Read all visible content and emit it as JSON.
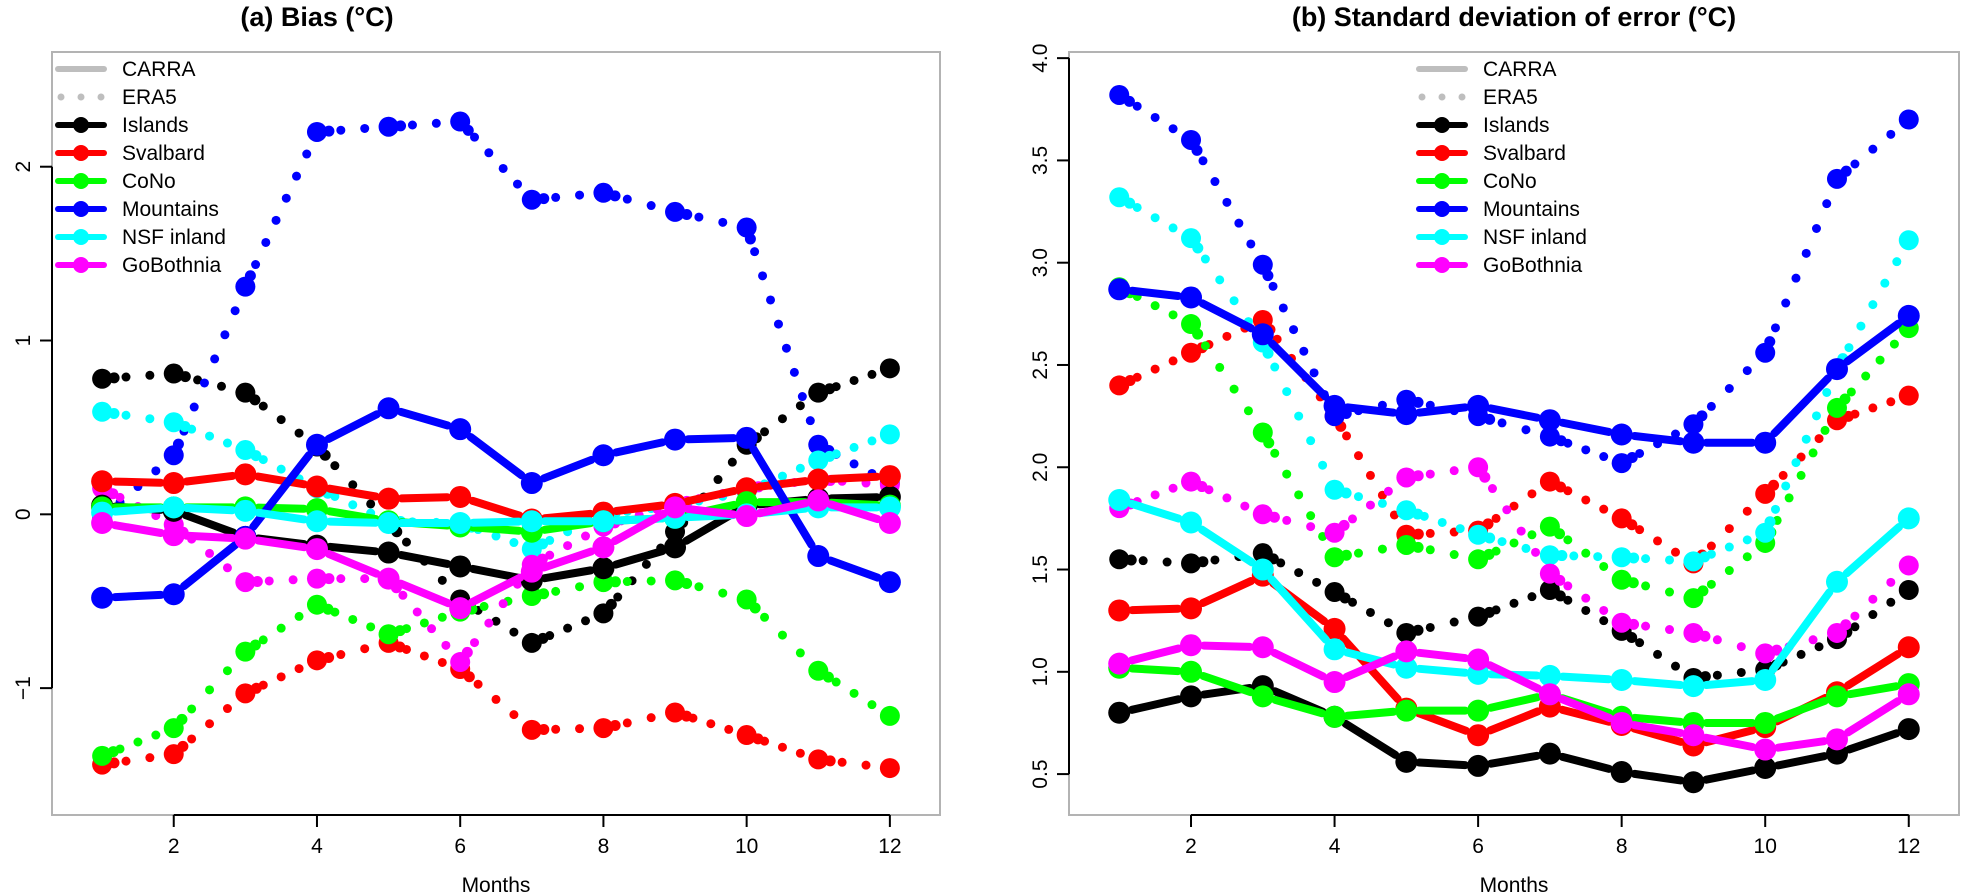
{
  "colors": {
    "Islands": "#000000",
    "Svalbard": "#ff0000",
    "CoNo": "#00ff00",
    "Mountains": "#0000ff",
    "NSF inland": "#00ffff",
    "GoBothnia": "#ff00ff",
    "legend_gray": "#bebebe"
  },
  "legend": {
    "styles": [
      {
        "label": "CARRA",
        "style": "solid"
      },
      {
        "label": "ERA5",
        "style": "dotted"
      }
    ],
    "regions": [
      "Islands",
      "Svalbard",
      "CoNo",
      "Mountains",
      "NSF inland",
      "GoBothnia"
    ]
  },
  "chart_data": [
    {
      "type": "line",
      "title": "(a) Bias (°C)",
      "xlabel": "Months",
      "ylabel": "",
      "x": [
        1,
        2,
        3,
        4,
        5,
        6,
        7,
        8,
        9,
        10,
        11,
        12
      ],
      "xlim": [
        0.3,
        12.7
      ],
      "ylim": [
        -1.73,
        2.66
      ],
      "xticks": [
        2,
        4,
        6,
        8,
        10,
        12
      ],
      "yticks": [
        -1,
        0,
        1,
        2
      ],
      "ytick_labels": [
        "−1",
        "0",
        "1",
        "2"
      ],
      "grid": false,
      "legend_position": "top-left",
      "series": [
        {
          "name": "Islands",
          "model": "CARRA",
          "values": [
            0.05,
            0.02,
            -0.13,
            -0.18,
            -0.22,
            -0.3,
            -0.38,
            -0.31,
            -0.19,
            0.05,
            0.09,
            0.1
          ]
        },
        {
          "name": "Svalbard",
          "model": "CARRA",
          "values": [
            0.19,
            0.18,
            0.23,
            0.16,
            0.09,
            0.1,
            -0.03,
            0.01,
            0.06,
            0.15,
            0.2,
            0.22
          ]
        },
        {
          "name": "CoNo",
          "model": "CARRA",
          "values": [
            0.04,
            0.04,
            0.04,
            0.03,
            -0.04,
            -0.07,
            -0.1,
            -0.04,
            -0.02,
            0.07,
            0.07,
            0.05
          ]
        },
        {
          "name": "Mountains",
          "model": "CARRA",
          "values": [
            -0.48,
            -0.46,
            -0.13,
            0.4,
            0.61,
            0.49,
            0.18,
            0.34,
            0.43,
            0.44,
            -0.24,
            -0.39
          ]
        },
        {
          "name": "NSF inland",
          "model": "CARRA",
          "values": [
            0.01,
            0.04,
            0.02,
            -0.04,
            -0.05,
            -0.05,
            -0.04,
            -0.04,
            -0.02,
            0.0,
            0.04,
            0.04
          ]
        },
        {
          "name": "GoBothnia",
          "model": "CARRA",
          "values": [
            -0.05,
            -0.12,
            -0.14,
            -0.2,
            -0.37,
            -0.54,
            -0.33,
            -0.19,
            0.04,
            -0.01,
            0.08,
            -0.05
          ]
        },
        {
          "name": "Islands",
          "model": "ERA5",
          "values": [
            0.78,
            0.81,
            0.7,
            0.39,
            -0.05,
            -0.49,
            -0.74,
            -0.57,
            -0.1,
            0.4,
            0.7,
            0.84
          ]
        },
        {
          "name": "Svalbard",
          "model": "ERA5",
          "values": [
            -1.44,
            -1.38,
            -1.03,
            -0.84,
            -0.74,
            -0.89,
            -1.24,
            -1.23,
            -1.14,
            -1.27,
            -1.41,
            -1.46
          ]
        },
        {
          "name": "CoNo",
          "model": "ERA5",
          "values": [
            -1.39,
            -1.23,
            -0.79,
            -0.52,
            -0.69,
            -0.56,
            -0.47,
            -0.39,
            -0.38,
            -0.49,
            -0.9,
            -1.16
          ]
        },
        {
          "name": "Mountains",
          "model": "ERA5",
          "values": [
            -0.02,
            0.34,
            1.31,
            2.2,
            2.23,
            2.26,
            1.81,
            1.85,
            1.74,
            1.65,
            0.4,
            0.18
          ]
        },
        {
          "name": "NSF inland",
          "model": "ERA5",
          "values": [
            0.59,
            0.53,
            0.37,
            0.15,
            -0.04,
            -0.05,
            -0.2,
            0.0,
            0.05,
            0.13,
            0.31,
            0.46
          ]
        },
        {
          "name": "GoBothnia",
          "model": "ERA5",
          "values": [
            0.15,
            -0.06,
            -0.39,
            -0.37,
            -0.37,
            -0.85,
            -0.29,
            -0.07,
            0.06,
            0.15,
            0.2,
            0.17
          ]
        }
      ]
    },
    {
      "type": "line",
      "title": "(b) Standard deviation of error (°C)",
      "xlabel": "Months",
      "ylabel": "",
      "x": [
        1,
        2,
        3,
        4,
        5,
        6,
        7,
        8,
        9,
        10,
        11,
        12
      ],
      "xlim": [
        0.3,
        12.7
      ],
      "ylim": [
        0.3,
        4.03
      ],
      "xticks": [
        2,
        4,
        6,
        8,
        10,
        12
      ],
      "yticks": [
        0.5,
        1.0,
        1.5,
        2.0,
        2.5,
        3.0,
        3.5,
        4.0
      ],
      "ytick_labels": [
        "0.5",
        "1.0",
        "1.5",
        "2.0",
        "2.5",
        "3.0",
        "3.5",
        "4.0"
      ],
      "grid": false,
      "legend_position": "top-center",
      "series": [
        {
          "name": "Islands",
          "model": "CARRA",
          "values": [
            0.8,
            0.88,
            0.93,
            0.78,
            0.56,
            0.54,
            0.6,
            0.51,
            0.46,
            0.53,
            0.6,
            0.72
          ]
        },
        {
          "name": "Svalbard",
          "model": "CARRA",
          "values": [
            1.3,
            1.31,
            1.47,
            1.21,
            0.82,
            0.69,
            0.83,
            0.74,
            0.64,
            0.73,
            0.9,
            1.12
          ]
        },
        {
          "name": "CoNo",
          "model": "CARRA",
          "values": [
            1.02,
            1.0,
            0.88,
            0.78,
            0.81,
            0.81,
            0.89,
            0.78,
            0.75,
            0.75,
            0.88,
            0.94
          ]
        },
        {
          "name": "Mountains",
          "model": "CARRA",
          "values": [
            2.87,
            2.83,
            2.65,
            2.3,
            2.26,
            2.3,
            2.23,
            2.16,
            2.12,
            2.12,
            2.48,
            2.74
          ]
        },
        {
          "name": "NSF inland",
          "model": "CARRA",
          "values": [
            1.84,
            1.73,
            1.5,
            1.11,
            1.02,
            0.99,
            0.98,
            0.96,
            0.93,
            0.96,
            1.44,
            1.75
          ]
        },
        {
          "name": "GoBothnia",
          "model": "CARRA",
          "values": [
            1.04,
            1.13,
            1.12,
            0.95,
            1.1,
            1.06,
            0.89,
            0.75,
            0.69,
            0.62,
            0.67,
            0.89
          ]
        },
        {
          "name": "Islands",
          "model": "ERA5",
          "values": [
            1.55,
            1.53,
            1.58,
            1.39,
            1.19,
            1.27,
            1.4,
            1.2,
            0.97,
            1.01,
            1.16,
            1.4
          ]
        },
        {
          "name": "Svalbard",
          "model": "ERA5",
          "values": [
            2.4,
            2.56,
            2.72,
            2.25,
            1.67,
            1.69,
            1.93,
            1.75,
            1.53,
            1.87,
            2.23,
            2.35
          ]
        },
        {
          "name": "CoNo",
          "model": "ERA5",
          "values": [
            2.88,
            2.7,
            2.17,
            1.56,
            1.62,
            1.55,
            1.71,
            1.45,
            1.36,
            1.63,
            2.29,
            2.68
          ]
        },
        {
          "name": "Mountains",
          "model": "ERA5",
          "values": [
            3.82,
            3.6,
            2.99,
            2.25,
            2.33,
            2.25,
            2.15,
            2.02,
            2.21,
            2.56,
            3.41,
            3.7
          ]
        },
        {
          "name": "NSF inland",
          "model": "ERA5",
          "values": [
            3.32,
            3.12,
            2.61,
            1.89,
            1.79,
            1.67,
            1.57,
            1.56,
            1.54,
            1.68,
            2.48,
            3.11
          ]
        },
        {
          "name": "GoBothnia",
          "model": "ERA5",
          "values": [
            1.8,
            1.93,
            1.77,
            1.68,
            1.95,
            2.0,
            1.48,
            1.24,
            1.19,
            1.09,
            1.19,
            1.52
          ]
        }
      ]
    }
  ]
}
